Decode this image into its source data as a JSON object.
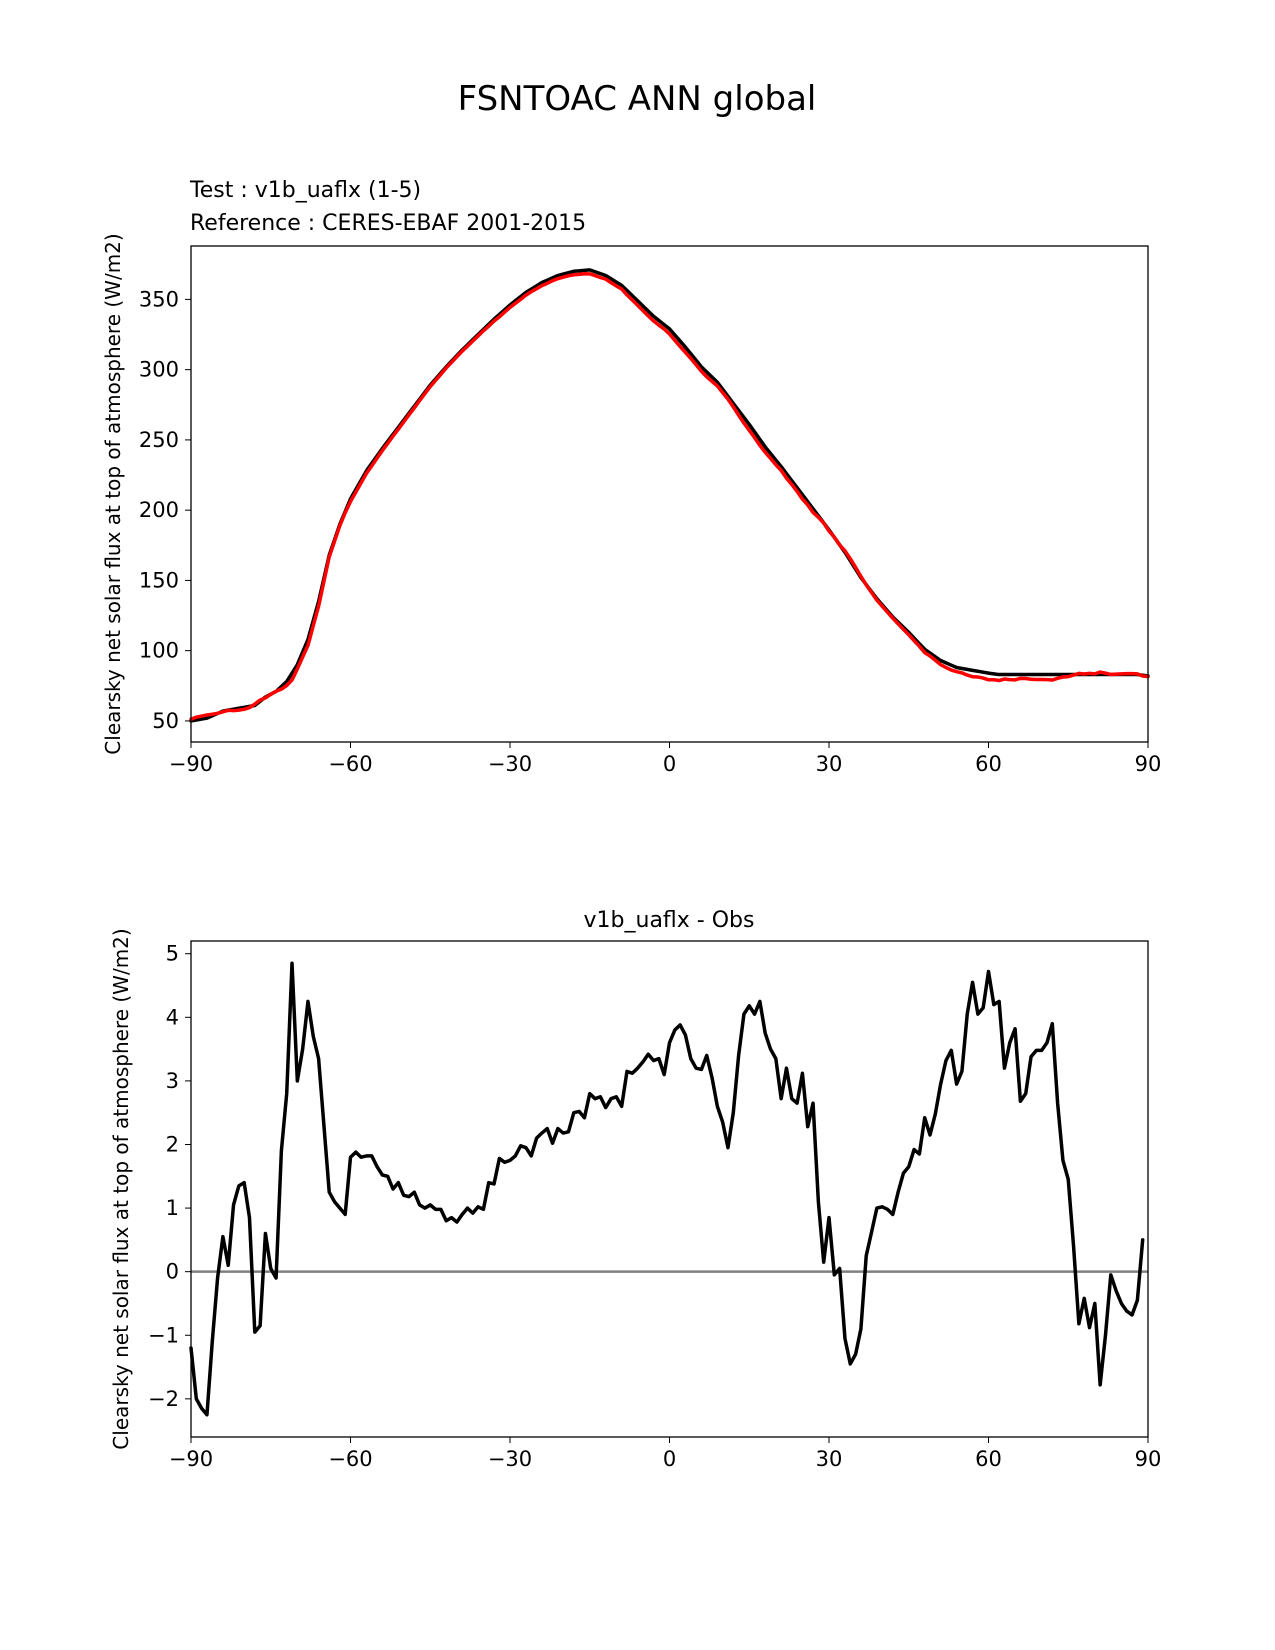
{
  "figure": {
    "title": "FSNTOAC ANN global"
  },
  "colors": {
    "test": "#000000",
    "reference": "#ff0000",
    "zero_line": "#808080"
  },
  "chart_data": [
    {
      "type": "line",
      "test_label": "Test : v1b_uaflx (1-5)",
      "reference_label": "Reference : CERES-EBAF 2001-2015",
      "ylabel": "Clearsky net solar flux at top of atmosphere (W/m2)",
      "xlim": [
        -90,
        90
      ],
      "ylim": [
        35,
        388
      ],
      "xticks": [
        -90,
        -60,
        -30,
        0,
        30,
        60,
        90
      ],
      "xtick_labels": [
        "−90",
        "−60",
        "−30",
        "0",
        "30",
        "60",
        "90"
      ],
      "yticks": [
        50,
        100,
        150,
        200,
        250,
        300,
        350
      ],
      "ytick_labels": [
        "50",
        "100",
        "150",
        "200",
        "250",
        "300",
        "350"
      ],
      "series": [
        {
          "role": "test",
          "color": "#000000",
          "x": [
            -90,
            -87,
            -84,
            -81,
            -78,
            -76,
            -74,
            -72,
            -70,
            -68,
            -66,
            -64,
            -62,
            -60,
            -57,
            -54,
            -51,
            -48,
            -45,
            -42,
            -39,
            -36,
            -33,
            -30,
            -27,
            -24,
            -21,
            -18,
            -15,
            -12,
            -9,
            -6,
            -3,
            0,
            3,
            6,
            9,
            12,
            15,
            18,
            21,
            24,
            27,
            30,
            33,
            36,
            39,
            42,
            45,
            48,
            51,
            54,
            57,
            60,
            62,
            64,
            66,
            68,
            70,
            72,
            74,
            76,
            78,
            80,
            82,
            84,
            86,
            88,
            90
          ],
          "y": [
            50,
            52,
            57,
            59,
            61,
            67,
            71,
            78,
            90,
            108,
            135,
            168,
            190,
            208,
            228,
            244,
            259,
            274,
            289,
            302,
            314,
            325,
            336,
            346,
            355,
            362,
            367,
            370,
            371,
            367,
            360,
            349,
            338,
            329,
            316,
            302,
            291,
            276,
            261,
            245,
            231,
            216,
            201,
            186,
            170,
            152,
            137,
            124,
            113,
            101,
            93,
            88,
            86,
            84,
            83,
            83,
            83,
            83,
            83,
            83,
            83,
            83,
            83,
            83,
            83,
            83,
            83,
            83,
            82
          ],
          "x_note": "reconstructed"
        },
        {
          "role": "reference",
          "color": "#ff0000",
          "x": [],
          "y": []
        }
      ]
    },
    {
      "type": "line",
      "title": "v1b_uaflx - Obs",
      "ylabel": "Clearsky net solar flux at top of atmosphere (W/m2)",
      "xlim": [
        -90,
        90
      ],
      "ylim": [
        -2.6,
        5.2
      ],
      "xticks": [
        -90,
        -60,
        -30,
        0,
        30,
        60,
        90
      ],
      "xtick_labels": [
        "−90",
        "−60",
        "−30",
        "0",
        "30",
        "60",
        "90"
      ],
      "yticks": [
        -2,
        -1,
        0,
        1,
        2,
        3,
        4,
        5
      ],
      "ytick_labels": [
        "−2",
        "−1",
        "0",
        "1",
        "2",
        "3",
        "4",
        "5"
      ],
      "zero_line": true,
      "series": [
        {
          "role": "difference",
          "color": "#000000",
          "x": [],
          "y": []
        }
      ]
    }
  ]
}
